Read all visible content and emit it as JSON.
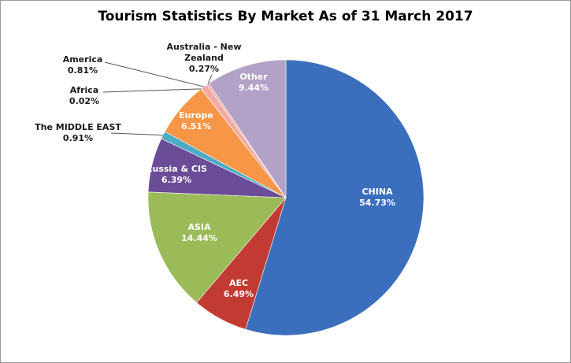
{
  "chart_data": {
    "type": "pie",
    "title": "Tourism Statistics By Market As of 31 March 2017",
    "categories": [
      "CHINA",
      "AEC",
      "ASIA",
      "Russia & CIS",
      "The MIDDLE EAST",
      "Europe",
      "Africa",
      "America",
      "Australia - New Zealand",
      "Other"
    ],
    "values": [
      54.73,
      6.49,
      14.44,
      6.39,
      0.91,
      6.51,
      0.02,
      0.81,
      0.27,
      9.44
    ],
    "value_labels": [
      "54.73%",
      "6.49%",
      "14.44%",
      "6.39%",
      "0.91%",
      "6.51%",
      "0.02%",
      "0.81%",
      "0.27%",
      "9.44%"
    ],
    "colors": [
      "#3b6fbd",
      "#c23b33",
      "#9bbb59",
      "#6b4c96",
      "#4bacc6",
      "#f79646",
      "#c0504d",
      "#f4a8a4",
      "#e6b0aa",
      "#b3a2c7"
    ]
  }
}
